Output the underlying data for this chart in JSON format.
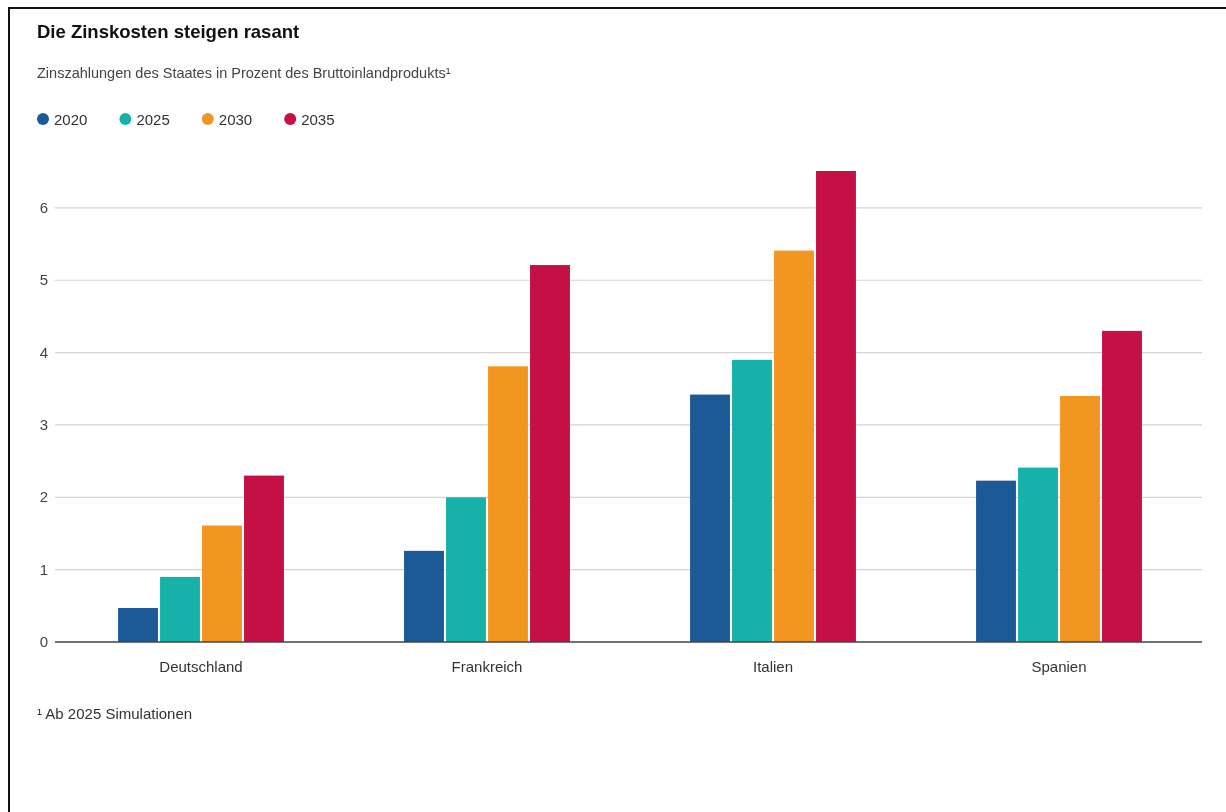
{
  "chart_data": {
    "type": "bar",
    "title": "Die Zinskosten steigen rasant",
    "subtitle": "Zinszahlungen des Staates in Prozent des Bruttoinlandprodukts¹",
    "annotations": [
      "¹ Ab 2025 Simulationen"
    ],
    "categories": [
      "Deutschland",
      "Frankreich",
      "Italien",
      "Spanien"
    ],
    "series": [
      {
        "name": "2020",
        "color": "#1b5a96",
        "values": [
          0.47,
          1.26,
          3.42,
          2.23
        ]
      },
      {
        "name": "2025",
        "color": "#16b1a8",
        "values": [
          0.9,
          2.0,
          3.9,
          2.41
        ]
      },
      {
        "name": "2030",
        "color": "#f39621",
        "values": [
          1.61,
          3.81,
          5.41,
          3.4
        ]
      },
      {
        "name": "2035",
        "color": "#c41044",
        "values": [
          2.3,
          5.21,
          6.51,
          4.3
        ]
      }
    ],
    "ylim": [
      0,
      6.51
    ],
    "yticks": [
      0,
      1,
      2,
      3,
      4,
      5,
      6
    ],
    "grid": "y",
    "legend": "top left"
  }
}
